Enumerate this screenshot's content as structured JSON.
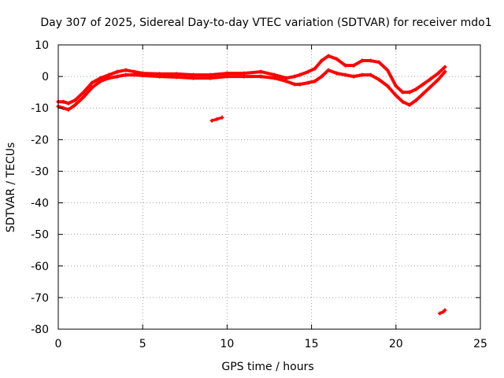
{
  "chart_data": {
    "type": "scatter",
    "title": "Day 307 of 2025, Sidereal Day-to-day VTEC variation (SDTVAR) for receiver mdo1",
    "xlabel": "GPS time / hours",
    "ylabel": "SDTVAR / TECUs",
    "xlim": [
      0,
      25
    ],
    "ylim": [
      -80,
      10
    ],
    "xticks": [
      0,
      5,
      10,
      15,
      20,
      25
    ],
    "yticks": [
      10,
      0,
      -10,
      -20,
      -30,
      -40,
      -50,
      -60,
      -70,
      -80
    ],
    "x_tick_labels": [
      "0",
      "5",
      "10",
      "15",
      "20",
      "25"
    ],
    "y_tick_labels": [
      "10",
      "0",
      "-10",
      "-20",
      "-30",
      "-40",
      "-50",
      "-60",
      "-70",
      "-80"
    ],
    "grid": true,
    "series_color": "#ff0000",
    "series": [
      {
        "name": "main-band-lower",
        "x": [
          0.0,
          0.3,
          0.6,
          1.0,
          1.5,
          2.0,
          2.5,
          3.0,
          3.5,
          4.0,
          4.5,
          5.0,
          6.0,
          7.0,
          8.0,
          9.0,
          10.0,
          11.0,
          12.0,
          12.8,
          13.5,
          14.0,
          14.3,
          14.8,
          15.2,
          15.6,
          16.0,
          16.5,
          17.0,
          17.5,
          18.0,
          18.5,
          19.0,
          19.5,
          20.0,
          20.4,
          20.8,
          21.2,
          21.6,
          22.0,
          22.5,
          22.9
        ],
        "values": [
          -9.5,
          -10.0,
          -10.5,
          -9.0,
          -6.5,
          -3.5,
          -1.5,
          -0.5,
          0.0,
          0.5,
          0.5,
          0.3,
          0.0,
          -0.2,
          -0.5,
          -0.5,
          0.0,
          0.0,
          0.0,
          -0.5,
          -1.5,
          -2.5,
          -2.5,
          -2.0,
          -1.5,
          0.0,
          2.0,
          1.0,
          0.5,
          0.0,
          0.5,
          0.5,
          -1.0,
          -3.0,
          -6.0,
          -8.0,
          -9.0,
          -7.5,
          -5.5,
          -3.5,
          -1.0,
          1.5
        ]
      },
      {
        "name": "main-band-upper",
        "x": [
          0.0,
          0.3,
          0.6,
          1.0,
          1.5,
          2.0,
          2.5,
          3.0,
          3.5,
          4.0,
          4.5,
          5.0,
          6.0,
          7.0,
          8.0,
          9.0,
          10.0,
          11.0,
          12.0,
          12.8,
          13.5,
          14.0,
          14.3,
          14.8,
          15.2,
          15.6,
          16.0,
          16.5,
          17.0,
          17.5,
          18.0,
          18.5,
          19.0,
          19.5,
          20.0,
          20.4,
          20.8,
          21.2,
          21.6,
          22.0,
          22.5,
          22.9
        ],
        "values": [
          -8.0,
          -8.0,
          -8.5,
          -7.5,
          -5.0,
          -2.0,
          -0.5,
          0.5,
          1.5,
          2.0,
          1.5,
          1.0,
          0.8,
          0.8,
          0.5,
          0.5,
          1.0,
          1.0,
          1.5,
          0.5,
          -0.5,
          0.0,
          0.5,
          1.5,
          2.5,
          5.0,
          6.5,
          5.5,
          3.5,
          3.5,
          5.0,
          5.0,
          4.5,
          2.0,
          -3.0,
          -5.0,
          -5.0,
          -4.0,
          -2.5,
          -1.0,
          1.0,
          3.0
        ]
      },
      {
        "name": "segment-near-9h",
        "x": [
          9.1,
          9.4,
          9.7
        ],
        "values": [
          -14.0,
          -13.5,
          -13.0
        ]
      },
      {
        "name": "segment-near-23h",
        "x": [
          22.6,
          22.8,
          22.9
        ],
        "values": [
          -75.0,
          -74.5,
          -74.0
        ]
      }
    ]
  }
}
